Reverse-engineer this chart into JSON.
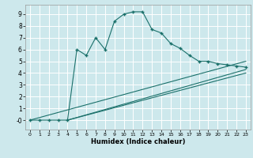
{
  "xlabel": "Humidex (Indice chaleur)",
  "bg_color": "#cde8ec",
  "grid_color": "#ffffff",
  "line_color": "#1a706a",
  "xlim": [
    -0.5,
    23.5
  ],
  "ylim": [
    -0.8,
    9.8
  ],
  "xticks": [
    0,
    1,
    2,
    3,
    4,
    5,
    6,
    7,
    8,
    9,
    10,
    11,
    12,
    13,
    14,
    15,
    16,
    17,
    18,
    19,
    20,
    21,
    22,
    23
  ],
  "yticks": [
    0,
    1,
    2,
    3,
    4,
    5,
    6,
    7,
    8,
    9
  ],
  "curve1_x": [
    0,
    1,
    2,
    3,
    4,
    5,
    6,
    7,
    8,
    9,
    10,
    11,
    12,
    13,
    14,
    15,
    16,
    17,
    18,
    19,
    20,
    21,
    22,
    23
  ],
  "curve1_y": [
    0,
    0,
    0,
    0,
    0,
    6.0,
    5.5,
    7.0,
    6.0,
    8.4,
    9.0,
    9.2,
    9.2,
    7.7,
    7.4,
    6.5,
    6.1,
    5.5,
    5.0,
    5.0,
    4.8,
    4.7,
    4.6,
    4.5
  ],
  "line2_x": [
    0,
    23
  ],
  "line2_y": [
    0,
    5.0
  ],
  "line3_x": [
    4,
    23
  ],
  "line3_y": [
    0,
    4.3
  ],
  "line4_x": [
    4,
    23
  ],
  "line4_y": [
    0,
    4.0
  ],
  "xlabel_fontsize": 6.0,
  "tick_fontsize_x": 4.5,
  "tick_fontsize_y": 5.5
}
